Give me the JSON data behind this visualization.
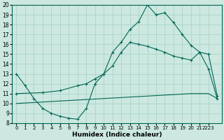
{
  "xlabel": "Humidex (Indice chaleur)",
  "bg_color": "#cce8e0",
  "grid_color": "#aad4c8",
  "line_color": "#006655",
  "xlim": [
    -0.5,
    23.5
  ],
  "ylim": [
    8,
    20
  ],
  "xtick_labels": [
    "0",
    "1",
    "2",
    "3",
    "4",
    "5",
    "6",
    "7",
    "8",
    "9",
    "10",
    "11",
    "12",
    "13",
    "14",
    "15",
    "16",
    "17",
    "18",
    "19",
    "20",
    "21",
    "2223"
  ],
  "xticks": [
    0,
    1,
    2,
    3,
    4,
    5,
    6,
    7,
    8,
    9,
    10,
    11,
    12,
    13,
    14,
    15,
    16,
    17,
    18,
    19,
    20,
    21,
    22
  ],
  "yticks": [
    8,
    9,
    10,
    11,
    12,
    13,
    14,
    15,
    16,
    17,
    18,
    19,
    20
  ],
  "line1_x": [
    0,
    1,
    2,
    3,
    4,
    5,
    6,
    7,
    8,
    9,
    10,
    11,
    12,
    13,
    14,
    15,
    16,
    17,
    18,
    19,
    20,
    21,
    22,
    23
  ],
  "line1_y": [
    13.0,
    11.8,
    10.5,
    9.5,
    9.0,
    8.7,
    8.5,
    8.4,
    9.5,
    12.0,
    13.0,
    15.2,
    16.2,
    17.5,
    18.3,
    20.0,
    19.0,
    19.2,
    18.2,
    17.0,
    15.9,
    15.2,
    13.5,
    10.5
  ],
  "line2_x": [
    0,
    3,
    5,
    7,
    8,
    9,
    10,
    11,
    12,
    13,
    14,
    15,
    16,
    17,
    18,
    19,
    20,
    21,
    22,
    23
  ],
  "line2_y": [
    11.0,
    11.1,
    11.3,
    11.8,
    12.0,
    12.5,
    13.0,
    13.8,
    15.2,
    16.2,
    16.0,
    15.8,
    15.5,
    15.2,
    14.8,
    14.6,
    14.4,
    15.2,
    15.0,
    10.8
  ],
  "line3_x": [
    0,
    1,
    2,
    3,
    4,
    5,
    6,
    7,
    8,
    9,
    10,
    11,
    12,
    13,
    14,
    15,
    16,
    17,
    18,
    19,
    20,
    21,
    22,
    23
  ],
  "line3_y": [
    10.0,
    10.05,
    10.1,
    10.15,
    10.2,
    10.25,
    10.3,
    10.35,
    10.4,
    10.45,
    10.5,
    10.55,
    10.6,
    10.65,
    10.7,
    10.75,
    10.8,
    10.85,
    10.9,
    10.95,
    11.0,
    11.0,
    11.0,
    10.5
  ]
}
